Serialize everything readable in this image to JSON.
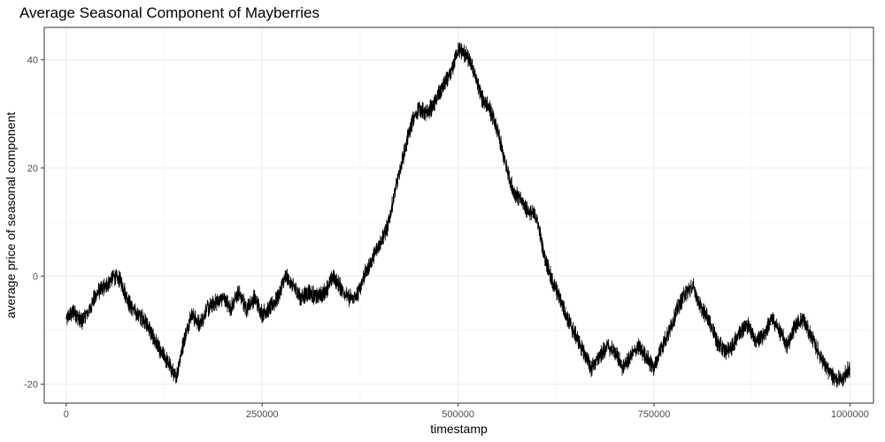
{
  "chart_data": {
    "type": "line",
    "title": "Average Seasonal Component of Mayberries",
    "xlabel": "timestamp",
    "ylabel": "average price of seasonal component",
    "xlim": [
      -28000,
      1030000
    ],
    "ylim": [
      -23.5,
      46
    ],
    "x_ticks": [
      0,
      250000,
      500000,
      750000,
      1000000
    ],
    "x_tick_labels": [
      "0",
      "250000",
      "500000",
      "750000",
      "1000000"
    ],
    "y_ticks": [
      -20,
      0,
      20,
      40
    ],
    "y_tick_labels": [
      "-20",
      "0",
      "20",
      "40"
    ],
    "grid": true,
    "legend": "none",
    "series": [
      {
        "color": "#000000",
        "x": [
          0,
          10000,
          20000,
          30000,
          40000,
          50000,
          60000,
          70000,
          80000,
          90000,
          100000,
          110000,
          120000,
          130000,
          140000,
          150000,
          160000,
          170000,
          180000,
          190000,
          200000,
          210000,
          220000,
          230000,
          240000,
          250000,
          260000,
          270000,
          280000,
          290000,
          300000,
          310000,
          320000,
          330000,
          340000,
          350000,
          360000,
          370000,
          380000,
          390000,
          400000,
          410000,
          420000,
          430000,
          440000,
          450000,
          460000,
          470000,
          480000,
          490000,
          500000,
          510000,
          520000,
          530000,
          540000,
          550000,
          560000,
          570000,
          580000,
          590000,
          600000,
          610000,
          620000,
          630000,
          640000,
          650000,
          660000,
          670000,
          680000,
          690000,
          700000,
          710000,
          720000,
          730000,
          740000,
          750000,
          760000,
          770000,
          780000,
          790000,
          800000,
          810000,
          820000,
          830000,
          840000,
          850000,
          860000,
          870000,
          880000,
          890000,
          900000,
          910000,
          920000,
          930000,
          940000,
          950000,
          960000,
          970000,
          980000,
          990000,
          1000000
        ],
        "y": [
          -8,
          -6.5,
          -8.5,
          -6,
          -3,
          -2,
          0,
          -1,
          -5,
          -7,
          -8,
          -11,
          -14,
          -16,
          -19,
          -12,
          -7,
          -9,
          -6,
          -5,
          -4,
          -6,
          -3,
          -6,
          -4,
          -7,
          -6,
          -4,
          0,
          -2,
          -4,
          -3,
          -4,
          -3,
          0,
          -2,
          -4,
          -4,
          0,
          3,
          6,
          9,
          16,
          22,
          28,
          31,
          30,
          32,
          35,
          37,
          42,
          41,
          38,
          33,
          31,
          27,
          21,
          16,
          14,
          12,
          11,
          4,
          -1,
          -4,
          -8,
          -11,
          -14,
          -17,
          -15,
          -13,
          -14,
          -17,
          -15,
          -13,
          -15,
          -17,
          -13,
          -10,
          -6,
          -3,
          -2,
          -6,
          -8,
          -12,
          -14,
          -13,
          -10,
          -9,
          -12,
          -11,
          -8,
          -10,
          -13,
          -9,
          -8,
          -11,
          -14,
          -17,
          -19,
          -19,
          -17
        ]
      }
    ]
  }
}
